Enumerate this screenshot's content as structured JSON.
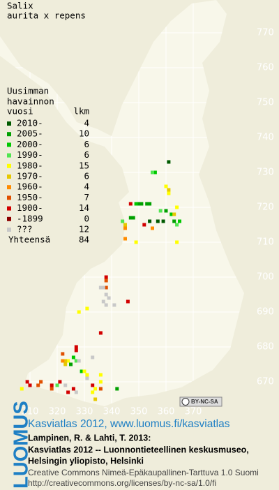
{
  "title": {
    "genus": "Salix",
    "taxon": "aurita x repens"
  },
  "legend": {
    "heading": [
      "Uusimman",
      "havainnon",
      "vuosi"
    ],
    "count_heading": "lkm",
    "items": [
      {
        "label": "2010-",
        "count": 4,
        "color": "#005a00",
        "squares": [
          [
            361,
            733
          ],
          [
            357,
            716
          ],
          [
            359,
            716
          ],
          [
            354,
            716
          ]
        ]
      },
      {
        "label": "2005-",
        "count": 10,
        "color": "#00a000",
        "squares": [
          [
            350,
            721
          ],
          [
            351,
            721
          ],
          [
            353,
            721
          ],
          [
            354,
            721
          ],
          [
            347,
            717
          ],
          [
            348,
            717
          ],
          [
            360,
            719
          ],
          [
            342,
            668
          ],
          [
            325,
            675
          ],
          [
            363,
            716
          ]
        ]
      },
      {
        "label": "2000-",
        "count": 6,
        "color": "#00c800",
        "squares": [
          [
            365,
            716
          ],
          [
            356,
            730
          ],
          [
            349,
            721
          ],
          [
            326,
            677
          ],
          [
            329,
            673
          ],
          [
            362,
            718
          ]
        ]
      },
      {
        "label": "1990-",
        "count": 6,
        "color": "#50e650",
        "squares": [
          [
            355,
            730
          ],
          [
            358,
            719
          ],
          [
            364,
            715
          ],
          [
            320,
            669
          ],
          [
            327,
            676
          ],
          [
            344,
            716
          ]
        ]
      },
      {
        "label": "1980-",
        "count": 15,
        "color": "#ffff00",
        "squares": [
          [
            360,
            726
          ],
          [
            361,
            724
          ],
          [
            364,
            720
          ],
          [
            349,
            710
          ],
          [
            364,
            710
          ],
          [
            331,
            691
          ],
          [
            328,
            690
          ],
          [
            324,
            676
          ],
          [
            330,
            673
          ],
          [
            331,
            672
          ],
          [
            336,
            672
          ],
          [
            336,
            670
          ],
          [
            334,
            668
          ],
          [
            333,
            667
          ],
          [
            307,
            668
          ]
        ]
      },
      {
        "label": "1970-",
        "count": 6,
        "color": "#e6c800",
        "squares": [
          [
            361,
            725
          ],
          [
            363,
            718
          ],
          [
            345,
            715
          ],
          [
            323,
            675
          ],
          [
            323,
            676
          ],
          [
            334,
            665
          ]
        ]
      },
      {
        "label": "1960-",
        "count": 4,
        "color": "#ff8c00",
        "squares": [
          [
            345,
            714
          ],
          [
            355,
            714
          ],
          [
            345,
            711
          ],
          [
            322,
            676
          ]
        ]
      },
      {
        "label": "1950-",
        "count": 7,
        "color": "#e05000",
        "squares": [
          [
            338,
            699
          ],
          [
            338,
            697
          ],
          [
            313,
            669
          ],
          [
            314,
            670
          ],
          [
            318,
            668
          ],
          [
            336,
            668
          ],
          [
            322,
            678
          ]
        ]
      },
      {
        "label": "1900-",
        "count": 14,
        "color": "#d20000",
        "squares": [
          [
            347,
            721
          ],
          [
            352,
            715
          ],
          [
            338,
            700
          ],
          [
            346,
            693
          ],
          [
            336,
            684
          ],
          [
            327,
            679
          ],
          [
            327,
            680
          ],
          [
            309,
            670
          ],
          [
            310,
            669
          ],
          [
            318,
            669
          ],
          [
            321,
            670
          ],
          [
            326,
            668
          ],
          [
            324,
            667
          ],
          [
            333,
            669
          ]
        ]
      },
      {
        "label": "-1899",
        "count": 0,
        "color": "#8c0000",
        "squares": []
      },
      {
        "label": "???",
        "count": 12,
        "color": "#c8c8c8",
        "squares": [
          [
            336,
            697
          ],
          [
            337,
            697
          ],
          [
            338,
            695
          ],
          [
            337,
            693
          ],
          [
            338,
            692
          ],
          [
            341,
            692
          ],
          [
            331,
            671
          ],
          [
            327,
            667
          ],
          [
            328,
            676
          ],
          [
            333,
            677
          ],
          [
            323,
            669
          ],
          [
            339,
            694
          ]
        ]
      }
    ],
    "total": {
      "label": "Yhteensä",
      "count": 84
    }
  },
  "xticks": [
    310,
    320,
    330,
    340,
    350,
    360,
    370
  ],
  "yticks": [
    670,
    680,
    690,
    700,
    710,
    720,
    730,
    740,
    750,
    760,
    770
  ],
  "license_badge": "BY-NC-SA",
  "footer": {
    "logo": "LUOMUS",
    "link": "Kasviatlas 2012, www.luomus.fi/kasviatlas",
    "citation": [
      "Lampinen, R. & Lahti, T. 2013:",
      "Kasviatlas 2012 -- Luonnontieteellinen keskusmuseo,",
      "Helsingin yliopisto, Helsinki"
    ],
    "license": [
      "Creative Commons Nimeä-Epäkaupallinen-Tarttuva 1.0 Suomi",
      "http://creativecommons.org/licenses/by-nc-sa/1.0/fi"
    ]
  }
}
